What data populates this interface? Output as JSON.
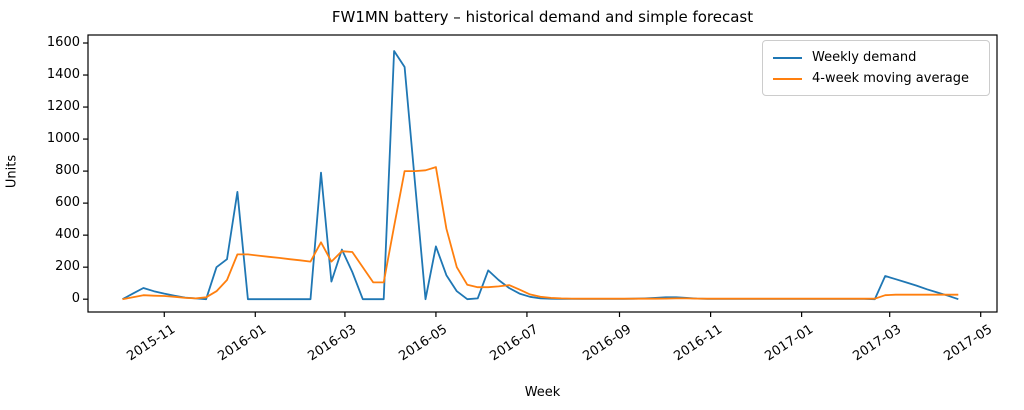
{
  "figure": {
    "background": "#ffffff",
    "spine_color": "#000000",
    "tick_color": "#000000"
  },
  "chart_data": {
    "type": "line",
    "title": "FW1MN battery – historical demand and simple forecast",
    "xlabel": "Week",
    "ylabel": "Units",
    "grid": false,
    "legend_position": "upper right",
    "start_date": "2015-10-04",
    "frequency": "weekly",
    "xlim_weeks": [
      -3.3,
      83.7
    ],
    "ylim": [
      -80,
      1650
    ],
    "y_ticks": [
      0,
      200,
      400,
      600,
      800,
      1000,
      1200,
      1400,
      1600
    ],
    "x_ticks": [
      {
        "label": "2015-11",
        "week": 4.0
      },
      {
        "label": "2016-01",
        "week": 12.71
      },
      {
        "label": "2016-03",
        "week": 21.29
      },
      {
        "label": "2016-05",
        "week": 30.0
      },
      {
        "label": "2016-07",
        "week": 38.71
      },
      {
        "label": "2016-09",
        "week": 47.57
      },
      {
        "label": "2016-11",
        "week": 56.29
      },
      {
        "label": "2017-01",
        "week": 65.0
      },
      {
        "label": "2017-03",
        "week": 73.43
      },
      {
        "label": "2017-05",
        "week": 82.14
      }
    ],
    "series": [
      {
        "name": "Weekly demand",
        "color": "#1f77b4",
        "values": [
          0,
          35,
          70,
          50,
          35,
          22,
          10,
          5,
          0,
          200,
          250,
          670,
          0,
          0,
          0,
          0,
          0,
          0,
          0,
          790,
          110,
          310,
          170,
          0,
          0,
          0,
          1550,
          1450,
          725,
          0,
          330,
          150,
          50,
          0,
          5,
          180,
          120,
          70,
          35,
          15,
          5,
          3,
          2,
          2,
          2,
          2,
          2,
          2,
          2,
          3,
          5,
          8,
          12,
          12,
          8,
          4,
          2,
          2,
          2,
          2,
          2,
          2,
          2,
          2,
          2,
          2,
          2,
          2,
          2,
          2,
          2,
          2,
          0,
          145,
          125,
          105,
          85,
          62,
          42,
          22,
          0
        ]
      },
      {
        "name": "4-week moving average",
        "color": "#ff7f0e",
        "values": [
          0,
          12,
          25,
          22,
          20,
          15,
          8,
          5,
          12,
          50,
          120,
          280,
          280,
          272,
          265,
          258,
          250,
          243,
          235,
          355,
          235,
          300,
          295,
          200,
          105,
          105,
          455,
          800,
          800,
          805,
          825,
          440,
          200,
          90,
          75,
          75,
          80,
          88,
          60,
          30,
          15,
          8,
          5,
          4,
          3,
          3,
          3,
          3,
          3,
          3,
          3,
          3,
          4,
          5,
          5,
          4,
          3,
          3,
          3,
          3,
          3,
          3,
          3,
          3,
          3,
          3,
          3,
          3,
          3,
          3,
          3,
          3,
          3,
          25,
          28,
          28,
          28,
          28,
          28,
          28,
          28
        ]
      }
    ]
  }
}
